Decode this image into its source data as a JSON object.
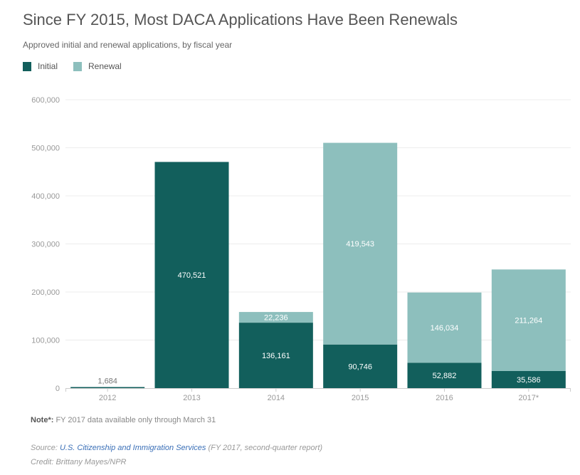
{
  "header": {
    "title": "Since FY 2015, Most DACA Applications Have Been Renewals",
    "subtitle": "Approved initial and renewal applications, by fiscal year"
  },
  "colors": {
    "initial": "#125f5c",
    "renewal": "#8dbfbd",
    "grid": "#ececec",
    "axis_text": "#999999",
    "label_dark": "#777777",
    "label_light": "#ffffff"
  },
  "chart_data": {
    "type": "bar",
    "stacked": true,
    "title": "Since FY 2015, Most DACA Applications Have Been Renewals",
    "subtitle": "Approved initial and renewal applications, by fiscal year",
    "xlabel": "",
    "ylabel": "",
    "categories": [
      "2012",
      "2013",
      "2014",
      "2015",
      "2016",
      "2017*"
    ],
    "series": [
      {
        "name": "Initial",
        "values": [
          1684,
          470521,
          136161,
          90746,
          52882,
          35586
        ]
      },
      {
        "name": "Renewal",
        "values": [
          0,
          0,
          22236,
          419543,
          146034,
          211264
        ]
      }
    ],
    "ylim": [
      0,
      600000
    ],
    "yticks": [
      0,
      100000,
      200000,
      300000,
      400000,
      500000,
      600000
    ],
    "ytick_labels": [
      "0",
      "100,000",
      "200,000",
      "300,000",
      "400,000",
      "500,000",
      "600,000"
    ],
    "data_labels": {
      "Initial": [
        "1,684",
        "470,521",
        "136,161",
        "90,746",
        "52,882",
        "35,586"
      ],
      "Renewal": [
        "",
        "",
        "22,236",
        "419,543",
        "146,034",
        "211,264"
      ]
    },
    "grid": true,
    "legend": "top-left"
  },
  "legend": [
    {
      "label": "Initial"
    },
    {
      "label": "Renewal"
    }
  ],
  "footer": {
    "note_label": "Note*:",
    "note_text": " FY 2017 data available only through March 31",
    "source_prefix": "Source: ",
    "source_link": "U.S. Citizenship and Immigration Services",
    "source_suffix": " (FY 2017, second-quarter report)",
    "credit": "Credit: Brittany Mayes/NPR"
  }
}
